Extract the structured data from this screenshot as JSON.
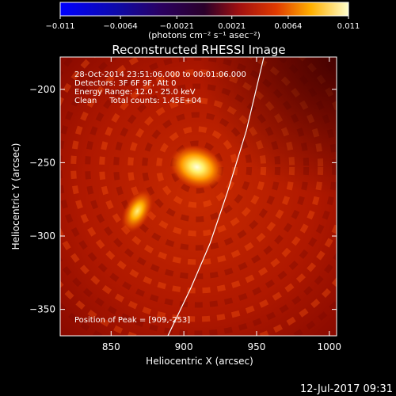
{
  "colorbar": {
    "ticks": [
      "−0.011",
      "−0.0064",
      "−0.0021",
      "0.0021",
      "0.0064",
      "0.011"
    ],
    "tick_values": [
      -0.011,
      -0.0064,
      -0.0021,
      0.0021,
      0.0064,
      0.011
    ],
    "units_label": "(photons cm⁻² s⁻¹ asec⁻²)",
    "min": -0.011,
    "max": 0.011
  },
  "chart_data": {
    "type": "heatmap",
    "title": "Reconstructed RHESSI Image",
    "xlabel": "Heliocentric X (arcsec)",
    "ylabel": "Heliocentric Y (arcsec)",
    "xlim": [
      815,
      1005
    ],
    "ylim": [
      -368,
      -178
    ],
    "x_ticks": [
      850,
      900,
      950,
      1000
    ],
    "x_tick_labels": [
      "850",
      "900",
      "950",
      "1000"
    ],
    "y_ticks": [
      -200,
      -250,
      -300,
      -350
    ],
    "y_tick_labels": [
      "−200",
      "−250",
      "−300",
      "−350"
    ],
    "sources": [
      {
        "x": 909,
        "y": -253,
        "intensity": 0.011
      },
      {
        "x": 868,
        "y": -283,
        "intensity": 0.0075
      }
    ],
    "limb_curve": [
      [
        889,
        -368
      ],
      [
        905,
        -335
      ],
      [
        918,
        -305
      ],
      [
        930,
        -270
      ],
      [
        943,
        -228
      ],
      [
        955,
        -178
      ]
    ],
    "info_lines": [
      "28-Oct-2014 23:51:06.000 to 00:01:06.000",
      "Detectors: 3F 6F 9F, Att 0",
      "Energy Range: 12.0 - 25.0 keV",
      "Clean     Total counts: 1.45E+04"
    ],
    "peak_label": "Position of Peak = [909,-253]",
    "peak": [
      909,
      -253
    ]
  },
  "footer": {
    "date": "12-Jul-2017 09:31"
  }
}
